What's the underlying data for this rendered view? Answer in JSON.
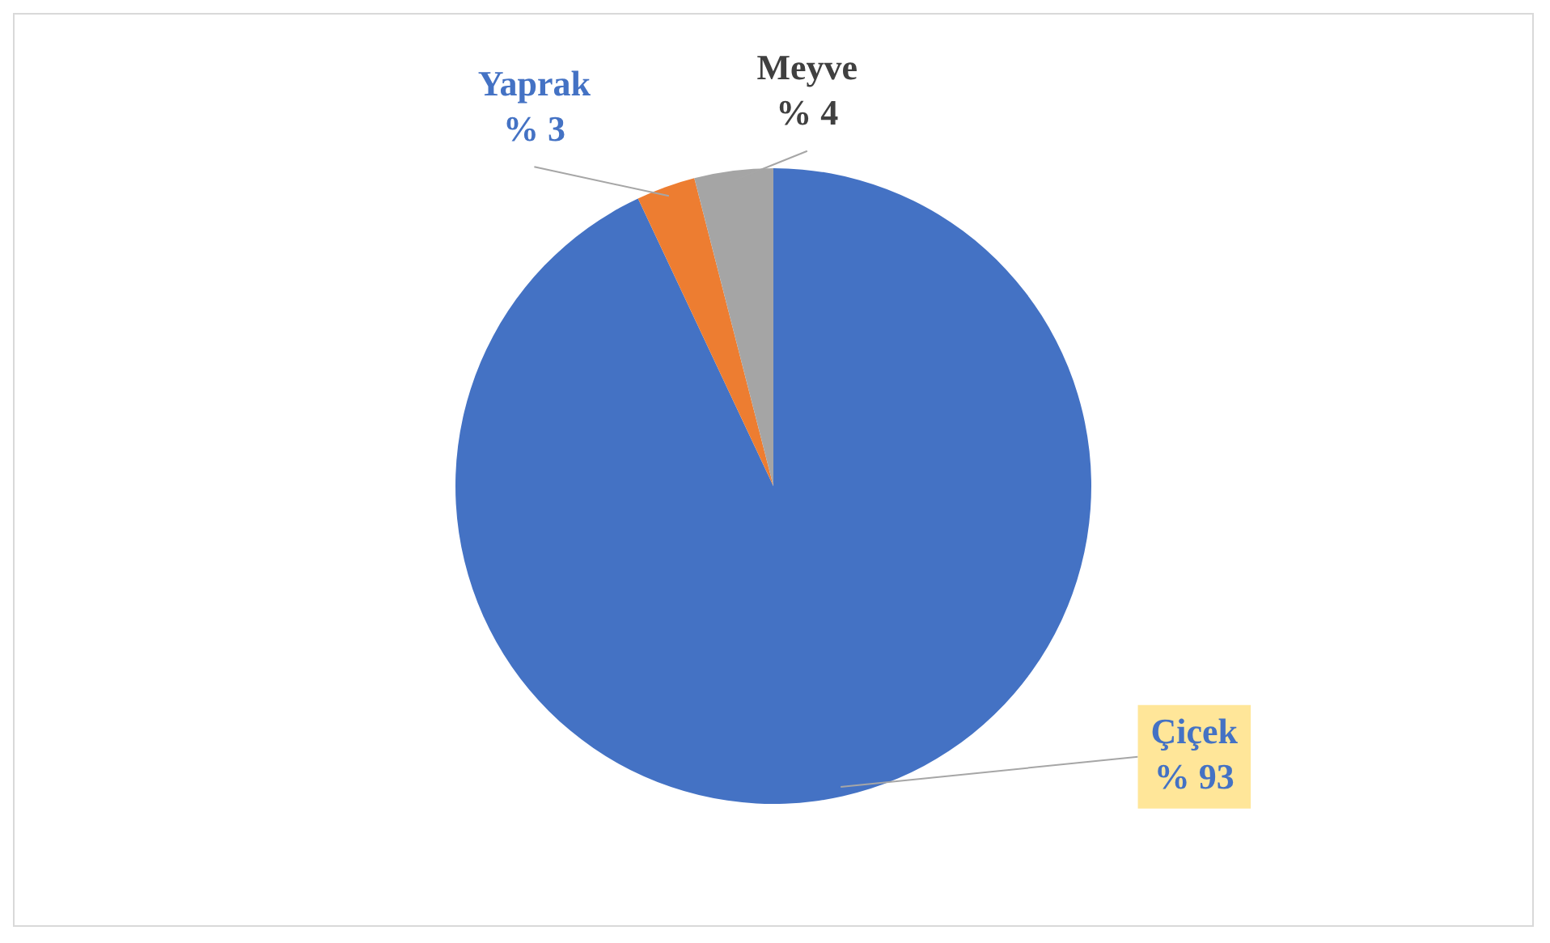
{
  "chart_data": {
    "type": "pie",
    "categories": [
      "Çiçek",
      "Yaprak",
      "Meyve"
    ],
    "values": [
      93,
      3,
      4
    ],
    "colors": [
      "#4472c4",
      "#ed7d31",
      "#a5a5a5"
    ],
    "value_labels": [
      "% 93",
      "% 3",
      "% 4"
    ],
    "legend": false
  }
}
